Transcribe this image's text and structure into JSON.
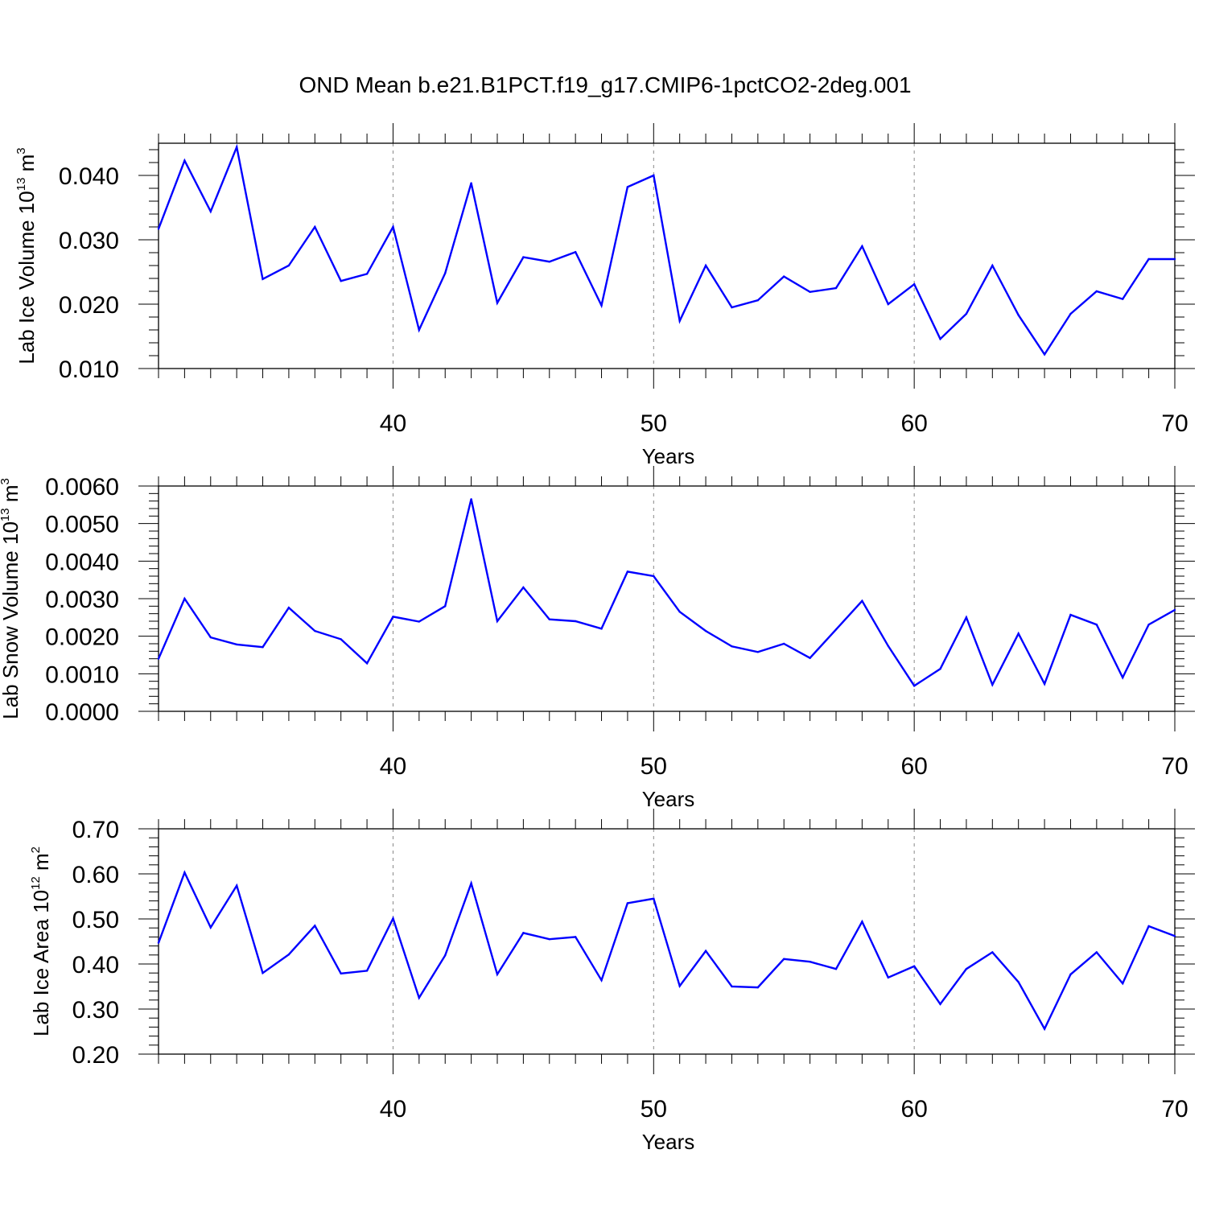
{
  "figure_title": "OND Mean b.e21.B1PCT.f19_g17.CMIP6-1pctCO2-2deg.001",
  "chart_data": [
    {
      "type": "line",
      "title": "OND Mean b.e21.B1PCT.f19_g17.CMIP6-1pctCO2-2deg.001",
      "xlabel": "Years",
      "ylabel_main": "Lab Ice Volume 10",
      "ylabel_exp": "13",
      "ylabel_unit": " m",
      "ylabel_unit_exp": "3",
      "xlim": [
        31,
        70
      ],
      "ylim": [
        0.01,
        0.045
      ],
      "x_ticks": [
        40,
        50,
        60,
        70
      ],
      "x_tick_labels": [
        "40",
        "50",
        "60",
        "70"
      ],
      "y_ticks": [
        0.01,
        0.02,
        0.03,
        0.04
      ],
      "y_tick_labels": [
        "0.010",
        "0.020",
        "0.030",
        "0.040"
      ],
      "grid_x": [
        40,
        50,
        60
      ],
      "series": [
        {
          "name": "Lab Ice Volume",
          "color": "#0000ff",
          "x": [
            31,
            32,
            33,
            34,
            35,
            36,
            37,
            38,
            39,
            40,
            41,
            42,
            43,
            44,
            45,
            46,
            47,
            48,
            49,
            50,
            51,
            52,
            53,
            54,
            55,
            56,
            57,
            58,
            59,
            60,
            61,
            62,
            63,
            64,
            65,
            66,
            67,
            68,
            69,
            70
          ],
          "values": [
            0.0317,
            0.0423,
            0.0344,
            0.0444,
            0.0239,
            0.026,
            0.032,
            0.0236,
            0.0247,
            0.032,
            0.016,
            0.0248,
            0.0388,
            0.0202,
            0.0273,
            0.0266,
            0.0281,
            0.0198,
            0.0382,
            0.04,
            0.0174,
            0.026,
            0.0195,
            0.0206,
            0.0243,
            0.0219,
            0.0225,
            0.029,
            0.02,
            0.0231,
            0.0146,
            0.0185,
            0.026,
            0.0183,
            0.0122,
            0.0185,
            0.022,
            0.0208,
            0.027,
            0.027
          ]
        }
      ]
    },
    {
      "type": "line",
      "title": "",
      "xlabel": "Years",
      "ylabel_main": "Lab Snow Volume 10",
      "ylabel_exp": "13",
      "ylabel_unit": " m",
      "ylabel_unit_exp": "3",
      "xlim": [
        31,
        70
      ],
      "ylim": [
        0.0,
        0.006
      ],
      "x_ticks": [
        40,
        50,
        60,
        70
      ],
      "x_tick_labels": [
        "40",
        "50",
        "60",
        "70"
      ],
      "y_ticks": [
        0.0,
        0.001,
        0.002,
        0.003,
        0.004,
        0.005,
        0.006
      ],
      "y_tick_labels": [
        "0.0000",
        "0.0010",
        "0.0020",
        "0.0030",
        "0.0040",
        "0.0050",
        "0.0060"
      ],
      "grid_x": [
        40,
        50,
        60
      ],
      "series": [
        {
          "name": "Lab Snow Volume",
          "color": "#0000ff",
          "x": [
            31,
            32,
            33,
            34,
            35,
            36,
            37,
            38,
            39,
            40,
            41,
            42,
            43,
            44,
            45,
            46,
            47,
            48,
            49,
            50,
            51,
            52,
            53,
            54,
            55,
            56,
            57,
            58,
            59,
            60,
            61,
            62,
            63,
            64,
            65,
            66,
            67,
            68,
            69,
            70
          ],
          "values": [
            0.0014,
            0.003,
            0.00197,
            0.00178,
            0.00171,
            0.00276,
            0.00214,
            0.00192,
            0.00128,
            0.00252,
            0.00239,
            0.0028,
            0.00565,
            0.0024,
            0.0033,
            0.00245,
            0.0024,
            0.0022,
            0.00372,
            0.0036,
            0.00265,
            0.00214,
            0.00173,
            0.00158,
            0.0018,
            0.00142,
            0.00218,
            0.00294,
            0.00174,
            0.00068,
            0.00113,
            0.0025,
            0.00071,
            0.00207,
            0.00073,
            0.00257,
            0.00231,
            0.0009,
            0.00231,
            0.0027
          ]
        }
      ]
    },
    {
      "type": "line",
      "title": "",
      "xlabel": "Years",
      "ylabel_main": "Lab Ice Area 10",
      "ylabel_exp": "12",
      "ylabel_unit": " m",
      "ylabel_unit_exp": "2",
      "xlim": [
        31,
        70
      ],
      "ylim": [
        0.2,
        0.7
      ],
      "x_ticks": [
        40,
        50,
        60,
        70
      ],
      "x_tick_labels": [
        "40",
        "50",
        "60",
        "70"
      ],
      "y_ticks": [
        0.2,
        0.3,
        0.4,
        0.5,
        0.6,
        0.7
      ],
      "y_tick_labels": [
        "0.20",
        "0.30",
        "0.40",
        "0.50",
        "0.60",
        "0.70"
      ],
      "grid_x": [
        40,
        50,
        60
      ],
      "series": [
        {
          "name": "Lab Ice Area",
          "color": "#0000ff",
          "x": [
            31,
            32,
            33,
            34,
            35,
            36,
            37,
            38,
            39,
            40,
            41,
            42,
            43,
            44,
            45,
            46,
            47,
            48,
            49,
            50,
            51,
            52,
            53,
            54,
            55,
            56,
            57,
            58,
            59,
            60,
            61,
            62,
            63,
            64,
            65,
            66,
            67,
            68,
            69,
            70
          ],
          "values": [
            0.447,
            0.603,
            0.481,
            0.574,
            0.38,
            0.421,
            0.485,
            0.379,
            0.385,
            0.501,
            0.325,
            0.419,
            0.579,
            0.377,
            0.469,
            0.455,
            0.46,
            0.364,
            0.535,
            0.545,
            0.351,
            0.429,
            0.35,
            0.348,
            0.411,
            0.405,
            0.389,
            0.494,
            0.37,
            0.395,
            0.311,
            0.389,
            0.426,
            0.36,
            0.256,
            0.377,
            0.426,
            0.357,
            0.484,
            0.462
          ]
        }
      ]
    }
  ]
}
